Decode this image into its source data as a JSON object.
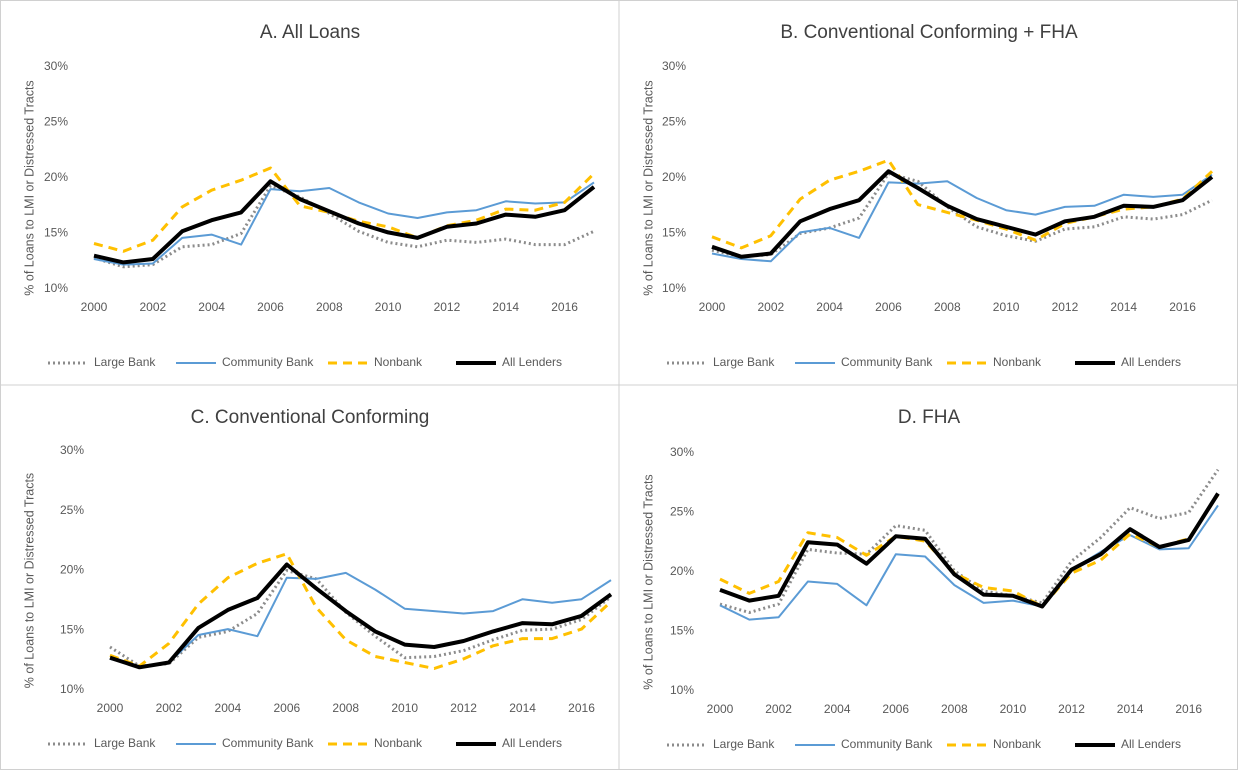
{
  "chart_data": [
    {
      "type": "line",
      "title": "A. All Loans",
      "y_label": "% of Loans to LMI or Distressed Tracts",
      "x": [
        2000,
        2001,
        2002,
        2003,
        2004,
        2005,
        2006,
        2007,
        2008,
        2009,
        2010,
        2011,
        2012,
        2013,
        2014,
        2015,
        2016,
        2017
      ],
      "xlim": [
        2000,
        2017
      ],
      "xticks": [
        2000,
        2002,
        2004,
        2006,
        2008,
        2010,
        2012,
        2014,
        2016
      ],
      "ylim": [
        10,
        30
      ],
      "yticks": [
        {
          "value": 10,
          "label": "10%"
        },
        {
          "value": 15,
          "label": "15%"
        },
        {
          "value": 20,
          "label": "20%"
        },
        {
          "value": 25,
          "label": "25%"
        },
        {
          "value": 30,
          "label": "30%"
        }
      ],
      "grid": false,
      "legend": "bottom",
      "series": [
        {
          "name": "Large Bank",
          "color": "#8c8c8c",
          "line_style": "dotted",
          "values": [
            12.8,
            12.0,
            12.2,
            13.8,
            14.0,
            15.0,
            19.3,
            18.3,
            16.8,
            15.2,
            14.2,
            13.8,
            14.4,
            14.2,
            14.5,
            14.0,
            14.0,
            15.2
          ]
        },
        {
          "name": "Community Bank",
          "color": "#5b9bd5",
          "line_style": "solid",
          "values": [
            12.7,
            12.2,
            12.3,
            14.6,
            14.9,
            14.0,
            19.0,
            18.8,
            19.1,
            17.8,
            16.8,
            16.4,
            16.9,
            17.1,
            17.9,
            17.7,
            17.8,
            19.6
          ]
        },
        {
          "name": "Nonbank",
          "color": "#ffc000",
          "line_style": "dashed",
          "values": [
            14.1,
            13.4,
            14.4,
            17.4,
            18.9,
            19.8,
            20.9,
            17.5,
            16.9,
            16.1,
            15.6,
            14.6,
            15.7,
            16.2,
            17.2,
            17.1,
            17.8,
            20.4
          ]
        },
        {
          "name": "All Lenders",
          "color": "#000000",
          "line_style": "solid",
          "values": [
            13.0,
            12.4,
            12.7,
            15.2,
            16.2,
            16.9,
            19.7,
            18.1,
            17.0,
            15.9,
            15.1,
            14.6,
            15.6,
            15.9,
            16.7,
            16.5,
            17.1,
            19.2
          ]
        }
      ]
    },
    {
      "type": "line",
      "title": "B. Conventional Conforming + FHA",
      "y_label": "% of Loans to LMI or Distressed Tracts",
      "x": [
        2000,
        2001,
        2002,
        2003,
        2004,
        2005,
        2006,
        2007,
        2008,
        2009,
        2010,
        2011,
        2012,
        2013,
        2014,
        2015,
        2016,
        2017
      ],
      "xlim": [
        2000,
        2017
      ],
      "xticks": [
        2000,
        2002,
        2004,
        2006,
        2008,
        2010,
        2012,
        2014,
        2016
      ],
      "ylim": [
        10,
        30
      ],
      "yticks": [
        {
          "value": 10,
          "label": "10%"
        },
        {
          "value": 15,
          "label": "15%"
        },
        {
          "value": 20,
          "label": "20%"
        },
        {
          "value": 25,
          "label": "25%"
        },
        {
          "value": 30,
          "label": "30%"
        }
      ],
      "grid": false,
      "legend": "bottom",
      "series": [
        {
          "name": "Large Bank",
          "color": "#8c8c8c",
          "line_style": "dotted",
          "values": [
            13.5,
            12.9,
            13.1,
            15.0,
            15.5,
            16.4,
            20.4,
            19.7,
            17.4,
            15.6,
            14.8,
            14.3,
            15.4,
            15.6,
            16.5,
            16.3,
            16.7,
            18.0
          ]
        },
        {
          "name": "Community Bank",
          "color": "#5b9bd5",
          "line_style": "solid",
          "values": [
            13.2,
            12.7,
            12.5,
            15.1,
            15.5,
            14.6,
            19.6,
            19.5,
            19.7,
            18.2,
            17.1,
            16.7,
            17.4,
            17.5,
            18.5,
            18.3,
            18.5,
            20.3
          ]
        },
        {
          "name": "Nonbank",
          "color": "#ffc000",
          "line_style": "dashed",
          "values": [
            14.7,
            13.7,
            14.8,
            18.1,
            19.8,
            20.6,
            21.6,
            17.6,
            16.9,
            16.2,
            15.4,
            14.4,
            15.9,
            16.5,
            17.2,
            17.4,
            18.1,
            20.6
          ]
        },
        {
          "name": "All Lenders",
          "color": "#000000",
          "line_style": "solid",
          "values": [
            13.8,
            12.9,
            13.2,
            16.1,
            17.2,
            18.0,
            20.6,
            19.1,
            17.5,
            16.3,
            15.6,
            14.9,
            16.1,
            16.5,
            17.5,
            17.4,
            18.0,
            20.1
          ]
        }
      ]
    },
    {
      "type": "line",
      "title": "C. Conventional Conforming",
      "y_label": "% of Loans to LMI or Distressed Tracts",
      "x": [
        2000,
        2001,
        2002,
        2003,
        2004,
        2005,
        2006,
        2007,
        2008,
        2009,
        2010,
        2011,
        2012,
        2013,
        2014,
        2015,
        2016,
        2017
      ],
      "xlim": [
        2000,
        2017
      ],
      "xticks": [
        2000,
        2002,
        2004,
        2006,
        2008,
        2010,
        2012,
        2014,
        2016
      ],
      "ylim": [
        10,
        30
      ],
      "yticks": [
        {
          "value": 10,
          "label": "10%"
        },
        {
          "value": 15,
          "label": "15%"
        },
        {
          "value": 20,
          "label": "20%"
        },
        {
          "value": 25,
          "label": "25%"
        },
        {
          "value": 30,
          "label": "30%"
        }
      ],
      "grid": false,
      "legend": "bottom",
      "series": [
        {
          "name": "Large Bank",
          "color": "#8c8c8c",
          "line_style": "dotted",
          "values": [
            13.6,
            12.0,
            12.2,
            14.4,
            14.9,
            16.4,
            20.0,
            19.3,
            16.5,
            14.5,
            12.7,
            12.8,
            13.3,
            14.2,
            15.0,
            15.1,
            15.9,
            17.8
          ]
        },
        {
          "name": "Community Bank",
          "color": "#5b9bd5",
          "line_style": "solid",
          "values": [
            12.6,
            12.0,
            12.3,
            14.6,
            15.1,
            14.5,
            19.4,
            19.3,
            19.8,
            18.4,
            16.8,
            16.6,
            16.4,
            16.6,
            17.6,
            17.3,
            17.6,
            19.2
          ]
        },
        {
          "name": "Nonbank",
          "color": "#ffc000",
          "line_style": "dashed",
          "values": [
            12.9,
            12.0,
            13.9,
            17.2,
            19.4,
            20.6,
            21.4,
            16.9,
            14.2,
            12.8,
            12.3,
            11.8,
            12.6,
            13.7,
            14.3,
            14.3,
            15.1,
            17.4
          ]
        },
        {
          "name": "All Lenders",
          "color": "#000000",
          "line_style": "solid",
          "values": [
            12.7,
            11.9,
            12.3,
            15.2,
            16.7,
            17.7,
            20.5,
            18.5,
            16.6,
            14.9,
            13.8,
            13.6,
            14.1,
            14.9,
            15.6,
            15.5,
            16.2,
            18.0
          ]
        }
      ]
    },
    {
      "type": "line",
      "title": "D. FHA",
      "y_label": "% of Loans to LMI or Distressed Tracts",
      "x": [
        2000,
        2001,
        2002,
        2003,
        2004,
        2005,
        2006,
        2007,
        2008,
        2009,
        2010,
        2011,
        2012,
        2013,
        2014,
        2015,
        2016,
        2017
      ],
      "xlim": [
        2000,
        2017
      ],
      "xticks": [
        2000,
        2002,
        2004,
        2006,
        2008,
        2010,
        2012,
        2014,
        2016
      ],
      "ylim": [
        10,
        30
      ],
      "yticks": [
        {
          "value": 10,
          "label": "10%"
        },
        {
          "value": 15,
          "label": "15%"
        },
        {
          "value": 20,
          "label": "20%"
        },
        {
          "value": 25,
          "label": "25%"
        },
        {
          "value": 30,
          "label": "30%"
        }
      ],
      "grid": false,
      "legend": "bottom",
      "series": [
        {
          "name": "Large Bank",
          "color": "#8c8c8c",
          "line_style": "dotted",
          "values": [
            17.3,
            16.6,
            17.3,
            21.9,
            21.6,
            21.5,
            23.9,
            23.5,
            20.1,
            18.4,
            18.0,
            17.4,
            20.9,
            22.9,
            25.4,
            24.5,
            25.0,
            28.6
          ]
        },
        {
          "name": "Community Bank",
          "color": "#5b9bd5",
          "line_style": "solid",
          "values": [
            17.2,
            16.0,
            16.2,
            19.2,
            19.0,
            17.2,
            21.5,
            21.3,
            18.9,
            17.4,
            17.6,
            17.1,
            20.2,
            21.7,
            23.1,
            21.9,
            22.0,
            25.6
          ]
        },
        {
          "name": "Nonbank",
          "color": "#ffc000",
          "line_style": "dashed",
          "values": [
            19.4,
            18.2,
            19.2,
            23.3,
            22.9,
            21.4,
            23.0,
            22.6,
            19.9,
            18.7,
            18.4,
            17.1,
            19.9,
            21.0,
            23.2,
            22.1,
            22.8,
            26.5
          ]
        },
        {
          "name": "All Lenders",
          "color": "#000000",
          "line_style": "solid",
          "values": [
            18.5,
            17.6,
            18.0,
            22.5,
            22.3,
            20.7,
            23.0,
            22.8,
            19.8,
            18.1,
            18.0,
            17.1,
            20.2,
            21.5,
            23.6,
            22.1,
            22.7,
            26.6
          ]
        }
      ]
    }
  ]
}
